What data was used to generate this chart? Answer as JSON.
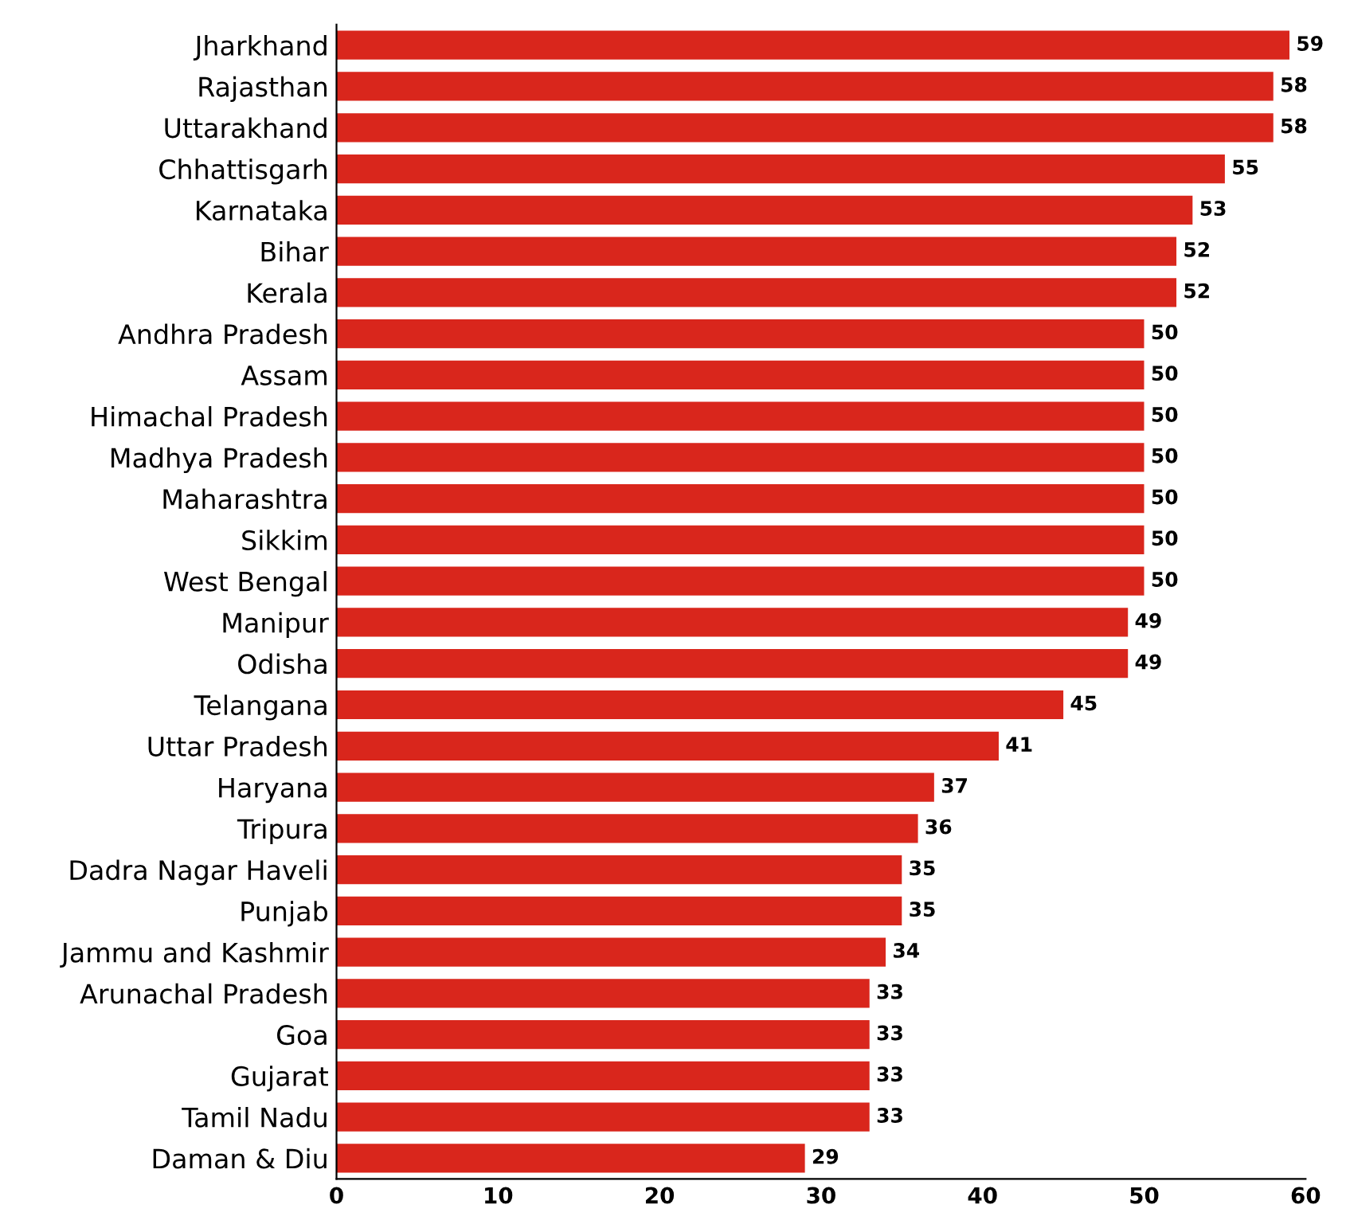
{
  "chart_data": {
    "type": "bar",
    "orientation": "horizontal",
    "categories": [
      "Jharkhand",
      "Rajasthan",
      "Uttarakhand",
      "Chhattisgarh",
      "Karnataka",
      "Bihar",
      "Kerala",
      "Andhra Pradesh",
      "Assam",
      "Himachal Pradesh",
      "Madhya Pradesh",
      "Maharashtra",
      "Sikkim",
      "West Bengal",
      "Manipur",
      "Odisha",
      "Telangana",
      "Uttar Pradesh",
      "Haryana",
      "Tripura",
      "Dadra Nagar Haveli",
      "Punjab",
      "Jammu and Kashmir",
      "Arunachal Pradesh",
      "Goa",
      "Gujarat",
      "Tamil Nadu",
      "Daman & Diu"
    ],
    "values": [
      59,
      58,
      58,
      55,
      53,
      52,
      52,
      50,
      50,
      50,
      50,
      50,
      50,
      50,
      49,
      49,
      45,
      41,
      37,
      36,
      35,
      35,
      34,
      33,
      33,
      33,
      33,
      29
    ],
    "color": "#d9261c",
    "xlim": [
      0,
      60
    ],
    "xticks": [
      0,
      10,
      20,
      30,
      40,
      50,
      60
    ],
    "data_labels": true,
    "grid": false,
    "legend": false
  }
}
